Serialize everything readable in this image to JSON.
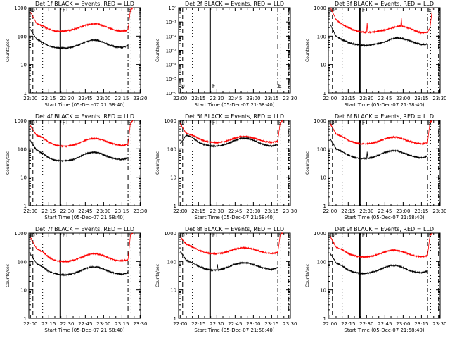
{
  "page": {
    "title_format": "Det {det} BLACK = Events, RED = LLD"
  },
  "marker_labels": [
    "D",
    "F",
    "E"
  ],
  "colors": {
    "events": "#000000",
    "lld": "#ff0000",
    "axes": "#000000",
    "background": "#ffffff"
  },
  "chart_data": [
    {
      "type": "line",
      "panel": "1f",
      "title": "Det 1f BLACK = Events, RED = LLD",
      "xlabel": "Start Time (05-Dec-07 21:58:40)",
      "ylabel": "Counts/sec",
      "xticks": [
        "22:00",
        "22:15",
        "22:30",
        "22:45",
        "23:00",
        "23:15",
        "23:30"
      ],
      "yticks": [
        "1",
        "10",
        "100",
        "1000"
      ],
      "ylog": true,
      "ylim": [
        1,
        1000
      ],
      "series": [
        {
          "color": "#ff0000",
          "x_min": [
            0,
            5,
            10,
            15,
            20,
            25,
            30,
            35,
            40,
            45,
            50,
            55,
            60,
            65,
            70,
            75,
            80,
            82,
            84
          ],
          "y": [
            700,
            280,
            230,
            175,
            150,
            150,
            155,
            170,
            200,
            240,
            270,
            270,
            230,
            190,
            160,
            150,
            165,
            850,
            1000
          ]
        },
        {
          "color": "#000000",
          "x_min": [
            0,
            5,
            10,
            15,
            20,
            25,
            30,
            35,
            40,
            45,
            50,
            55,
            60,
            65,
            70,
            75,
            80
          ],
          "y": [
            170,
            80,
            60,
            45,
            40,
            38,
            38,
            42,
            50,
            62,
            72,
            72,
            60,
            48,
            42,
            40,
            46
          ]
        }
      ]
    },
    {
      "type": "line",
      "panel": "2f",
      "title": "Det 2f BLACK = Events, RED = LLD",
      "xlabel": "Start Time (05-Dec-07 21:58:40)",
      "ylabel": "Counts/sec",
      "xticks": [
        "22:00",
        "22:15",
        "22:30",
        "22:45",
        "23:00",
        "23:15",
        "23:30"
      ],
      "yticks": [
        "10⁻⁶",
        "10⁻⁵",
        "10⁻⁴",
        "10⁻³",
        "10⁻²",
        "10⁻¹",
        "10⁰"
      ],
      "ylog": true,
      "ylim": [
        1e-06,
        1
      ],
      "series": []
    },
    {
      "type": "line",
      "panel": "3f",
      "title": "Det 3f BLACK = Events, RED = LLD",
      "xlabel": "Start Time (05-Dec-07 21:58:40)",
      "ylabel": "Counts/sec",
      "xticks": [
        "22:00",
        "22:15",
        "22:30",
        "22:45",
        "23:00",
        "23:15",
        "23:30"
      ],
      "yticks": [
        "1",
        "10",
        "100",
        "1000"
      ],
      "ylog": true,
      "ylim": [
        1,
        1000
      ],
      "series": [
        {
          "color": "#ff0000",
          "x_min": [
            0,
            5,
            10,
            15,
            20,
            25,
            30,
            30.5,
            31,
            35,
            40,
            45,
            50,
            55,
            58,
            58.5,
            59,
            60,
            65,
            70,
            75,
            80,
            82,
            84
          ],
          "y": [
            1100,
            380,
            260,
            200,
            160,
            140,
            135,
            300,
            135,
            140,
            150,
            165,
            190,
            220,
            230,
            450,
            230,
            220,
            190,
            155,
            130,
            135,
            200,
            1000
          ]
        },
        {
          "color": "#000000",
          "x_min": [
            0,
            5,
            10,
            15,
            20,
            25,
            30,
            35,
            40,
            45,
            50,
            55,
            60,
            65,
            70,
            75,
            80
          ],
          "y": [
            270,
            100,
            75,
            60,
            52,
            48,
            47,
            50,
            55,
            63,
            78,
            88,
            82,
            70,
            58,
            50,
            52
          ]
        }
      ]
    },
    {
      "type": "line",
      "panel": "4f",
      "title": "Det 4f BLACK = Events, RED = LLD",
      "xlabel": "Start Time (05-Dec-07 21:58:40)",
      "ylabel": "Counts/sec",
      "xticks": [
        "22:00",
        "22:15",
        "22:30",
        "22:45",
        "23:00",
        "23:15",
        "23:30"
      ],
      "yticks": [
        "1",
        "10",
        "100",
        "1000"
      ],
      "ylog": true,
      "ylim": [
        1,
        1000
      ],
      "series": [
        {
          "color": "#ff0000",
          "x_min": [
            0,
            5,
            10,
            15,
            20,
            25,
            30,
            35,
            40,
            45,
            50,
            55,
            60,
            65,
            70,
            75,
            80,
            82,
            84
          ],
          "y": [
            650,
            300,
            250,
            170,
            135,
            125,
            125,
            135,
            160,
            200,
            230,
            230,
            200,
            165,
            140,
            130,
            145,
            800,
            1000
          ]
        },
        {
          "color": "#000000",
          "x_min": [
            0,
            5,
            10,
            15,
            20,
            25,
            30,
            35,
            40,
            45,
            50,
            55,
            60,
            65,
            70,
            75,
            80
          ],
          "y": [
            190,
            90,
            70,
            48,
            40,
            38,
            38,
            42,
            52,
            66,
            75,
            75,
            62,
            50,
            44,
            42,
            48
          ]
        }
      ]
    },
    {
      "type": "line",
      "panel": "5f",
      "title": "Det 5f BLACK = Events, RED = LLD",
      "xlabel": "Start Time (05-Dec-07 21:58:40)",
      "ylabel": "Counts/sec",
      "xticks": [
        "22:00",
        "22:15",
        "22:30",
        "22:45",
        "23:00",
        "23:15",
        "23:30"
      ],
      "yticks": [
        "1",
        "10",
        "100",
        "1000"
      ],
      "ylog": true,
      "ylim": [
        1,
        1000
      ],
      "series": [
        {
          "color": "#ff0000",
          "x_min": [
            0,
            5,
            10,
            15,
            20,
            25,
            30,
            35,
            40,
            45,
            50,
            55,
            60,
            65,
            70,
            75,
            80,
            82,
            84
          ],
          "y": [
            750,
            350,
            300,
            230,
            190,
            170,
            165,
            175,
            200,
            240,
            270,
            270,
            240,
            205,
            180,
            170,
            185,
            850,
            1000
          ]
        },
        {
          "color": "#000000",
          "x_min": [
            0,
            5,
            10,
            15,
            20,
            25,
            30,
            35,
            40,
            45,
            50,
            55,
            60,
            65,
            70,
            75,
            80
          ],
          "y": [
            150,
            300,
            250,
            170,
            140,
            125,
            125,
            135,
            160,
            200,
            235,
            235,
            200,
            160,
            135,
            125,
            140
          ]
        }
      ]
    },
    {
      "type": "line",
      "panel": "6f",
      "title": "Det 6f BLACK = Events, RED = LLD",
      "xlabel": "Start Time (05-Dec-07 21:58:40)",
      "ylabel": "Counts/sec",
      "xticks": [
        "22:00",
        "22:15",
        "22:30",
        "22:45",
        "23:00",
        "23:15",
        "23:30"
      ],
      "yticks": [
        "1",
        "10",
        "100",
        "1000"
      ],
      "ylog": true,
      "ylim": [
        1,
        1000
      ],
      "series": [
        {
          "color": "#ff0000",
          "x_min": [
            0,
            5,
            10,
            15,
            20,
            25,
            30,
            35,
            40,
            45,
            50,
            55,
            60,
            65,
            70,
            75,
            80,
            82,
            84
          ],
          "y": [
            800,
            330,
            270,
            200,
            165,
            150,
            150,
            160,
            185,
            225,
            255,
            255,
            220,
            185,
            160,
            150,
            165,
            850,
            1000
          ]
        },
        {
          "color": "#000000",
          "x_min": [
            0,
            5,
            10,
            15,
            20,
            25,
            30,
            30.5,
            31,
            35,
            40,
            45,
            50,
            55,
            60,
            65,
            70,
            75,
            80
          ],
          "y": [
            230,
            100,
            80,
            60,
            50,
            46,
            46,
            80,
            46,
            50,
            60,
            75,
            85,
            85,
            72,
            60,
            52,
            48,
            55
          ]
        }
      ]
    },
    {
      "type": "line",
      "panel": "7f",
      "title": "Det 7f BLACK = Events, RED = LLD",
      "xlabel": "Start Time (05-Dec-07 21:58:40)",
      "ylabel": "Counts/sec",
      "xticks": [
        "22:00",
        "22:15",
        "22:30",
        "22:45",
        "23:00",
        "23:15",
        "23:30"
      ],
      "yticks": [
        "1",
        "10",
        "100",
        "1000"
      ],
      "ylog": true,
      "ylim": [
        1,
        1000
      ],
      "series": [
        {
          "color": "#ff0000",
          "x_min": [
            0,
            5,
            10,
            15,
            20,
            25,
            30,
            35,
            40,
            45,
            50,
            55,
            60,
            65,
            70,
            75,
            80,
            82,
            84
          ],
          "y": [
            700,
            280,
            220,
            140,
            110,
            100,
            100,
            110,
            130,
            160,
            185,
            185,
            160,
            130,
            110,
            105,
            115,
            850,
            1000
          ]
        },
        {
          "color": "#000000",
          "x_min": [
            0,
            5,
            10,
            15,
            20,
            25,
            30,
            35,
            40,
            45,
            50,
            55,
            60,
            65,
            70,
            75,
            80
          ],
          "y": [
            180,
            85,
            65,
            45,
            38,
            34,
            34,
            38,
            45,
            56,
            64,
            64,
            54,
            44,
            38,
            35,
            40
          ]
        }
      ]
    },
    {
      "type": "line",
      "panel": "8f",
      "title": "Det 8f BLACK = Events, RED = LLD",
      "xlabel": "Start Time (05-Dec-07 21:58:40)",
      "ylabel": "Counts/sec",
      "xticks": [
        "22:00",
        "22:15",
        "22:30",
        "22:45",
        "23:00",
        "23:15",
        "23:30"
      ],
      "yticks": [
        "1",
        "10",
        "100",
        "1000"
      ],
      "ylog": true,
      "ylim": [
        1,
        1000
      ],
      "series": [
        {
          "color": "#ff0000",
          "x_min": [
            0,
            5,
            10,
            15,
            20,
            25,
            30,
            35,
            40,
            45,
            50,
            55,
            60,
            65,
            70,
            75,
            80,
            82,
            84
          ],
          "y": [
            750,
            400,
            330,
            250,
            210,
            190,
            190,
            200,
            230,
            270,
            300,
            300,
            270,
            230,
            200,
            190,
            205,
            850,
            1000
          ]
        },
        {
          "color": "#000000",
          "x_min": [
            0,
            5,
            10,
            15,
            20,
            25,
            30,
            30.5,
            31,
            35,
            40,
            45,
            50,
            55,
            60,
            65,
            70,
            75,
            80
          ],
          "y": [
            230,
            110,
            90,
            68,
            56,
            50,
            50,
            80,
            50,
            55,
            65,
            80,
            90,
            90,
            78,
            65,
            57,
            52,
            60
          ]
        }
      ]
    },
    {
      "type": "line",
      "panel": "9f",
      "title": "Det 9f BLACK = Events, RED = LLD",
      "xlabel": "Start Time (05-Dec-07 21:58:40)",
      "ylabel": "Counts/sec",
      "xticks": [
        "22:00",
        "22:15",
        "22:30",
        "22:45",
        "23:00",
        "23:15",
        "23:30"
      ],
      "yticks": [
        "1",
        "10",
        "100",
        "1000"
      ],
      "ylog": true,
      "ylim": [
        1,
        1000
      ],
      "series": [
        {
          "color": "#ff0000",
          "x_min": [
            0,
            5,
            10,
            15,
            20,
            25,
            30,
            35,
            40,
            45,
            50,
            55,
            60,
            65,
            70,
            75,
            80,
            82,
            84
          ],
          "y": [
            800,
            320,
            260,
            190,
            160,
            145,
            145,
            155,
            180,
            220,
            250,
            250,
            215,
            180,
            155,
            145,
            160,
            850,
            1000
          ]
        },
        {
          "color": "#000000",
          "x_min": [
            0,
            5,
            10,
            15,
            20,
            25,
            30,
            35,
            40,
            45,
            50,
            55,
            60,
            65,
            70,
            75,
            80
          ],
          "y": [
            200,
            90,
            70,
            50,
            42,
            38,
            38,
            42,
            50,
            62,
            72,
            72,
            60,
            48,
            42,
            40,
            46
          ]
        }
      ]
    }
  ]
}
